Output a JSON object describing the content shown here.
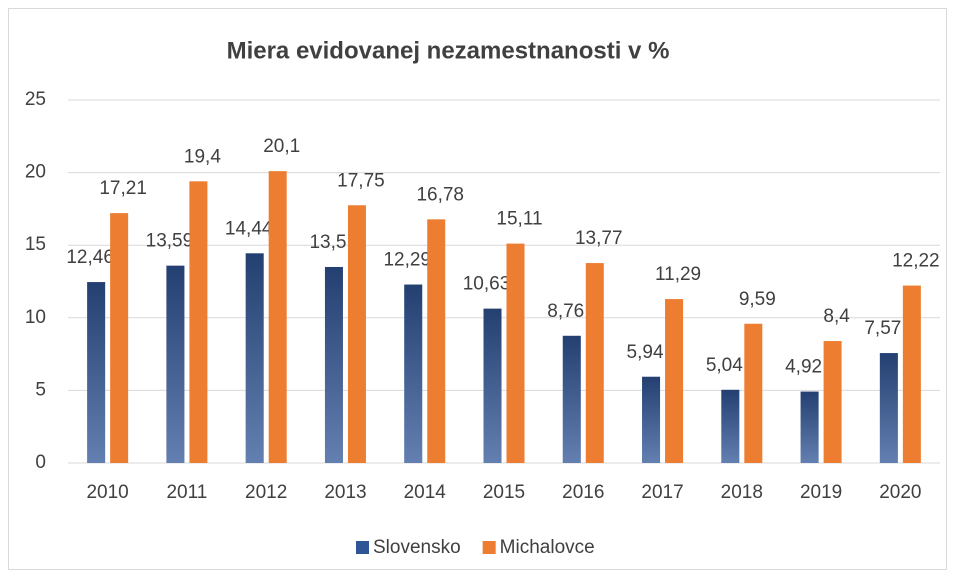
{
  "chart_data": {
    "type": "bar",
    "title": "Miera evidovanej nezamestnanosti v %",
    "categories": [
      "2010",
      "2011",
      "2012",
      "2013",
      "2014",
      "2015",
      "2016",
      "2017",
      "2018",
      "2019",
      "2020"
    ],
    "series": [
      {
        "name": "Slovensko",
        "color": "#2f5597",
        "values": [
          12.46,
          13.59,
          14.44,
          13.5,
          12.29,
          10.63,
          8.76,
          5.94,
          5.04,
          4.92,
          7.57
        ],
        "value_labels": [
          "12,46",
          "13,59",
          "14,44",
          "13,5",
          "12,29",
          "10,63",
          "8,76",
          "5,94",
          "5,04",
          "4,92",
          "7,57"
        ]
      },
      {
        "name": "Michalovce",
        "color": "#ed7d31",
        "values": [
          17.21,
          19.4,
          20.1,
          17.75,
          16.78,
          15.11,
          13.77,
          11.29,
          9.59,
          8.4,
          12.22
        ],
        "value_labels": [
          "17,21",
          "19,4",
          "20,1",
          "17,75",
          "16,78",
          "15,11",
          "13,77",
          "11,29",
          "9,59",
          "8,4",
          "12,22"
        ]
      }
    ],
    "ylim": [
      0,
      25
    ],
    "yticks": [
      0,
      5,
      10,
      15,
      20,
      25
    ],
    "grid": true,
    "legend": "bottom"
  }
}
